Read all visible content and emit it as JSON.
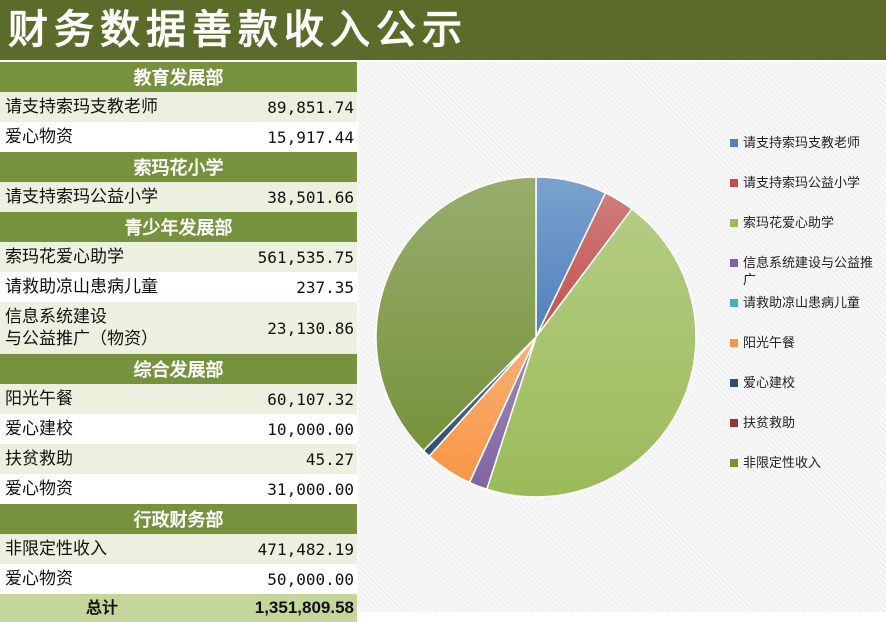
{
  "title": "财务数据善款收入公示",
  "table": {
    "sections": [
      {
        "name": "教育发展部",
        "rows": [
          {
            "label": "请支持索玛支教老师",
            "amount": "89,851.74"
          },
          {
            "label": "爱心物资",
            "amount": "15,917.44"
          }
        ]
      },
      {
        "name": "索玛花小学",
        "rows": [
          {
            "label": "请支持索玛公益小学",
            "amount": "38,501.66"
          }
        ]
      },
      {
        "name": "青少年发展部",
        "rows": [
          {
            "label": "索玛花爱心助学",
            "amount": "561,535.75"
          },
          {
            "label": "请救助凉山患病儿童",
            "amount": "237.35"
          },
          {
            "label": "信息系统建设\n与公益推广（物资）",
            "amount": "23,130.86"
          }
        ]
      },
      {
        "name": "综合发展部",
        "rows": [
          {
            "label": "阳光午餐",
            "amount": "60,107.32"
          },
          {
            "label": "爱心建校",
            "amount": "10,000.00"
          },
          {
            "label": "扶贫救助",
            "amount": "45.27"
          },
          {
            "label": "爱心物资",
            "amount": "31,000.00"
          }
        ]
      },
      {
        "name": "行政财务部",
        "rows": [
          {
            "label": "非限定性收入",
            "amount": "471,482.19"
          },
          {
            "label": "爱心物资",
            "amount": "50,000.00"
          }
        ]
      }
    ],
    "total_label": "总计",
    "total_amount": "1,351,809.58"
  },
  "chart_data": {
    "type": "pie",
    "categories": [
      "请支持索玛支教老师",
      "请支持索玛公益小学",
      "索玛花爱心助学",
      "信息系统建设与公益推广",
      "请救助凉山患病儿童",
      "阳光午餐",
      "爱心建校",
      "扶贫救助",
      "非限定性收入"
    ],
    "values": [
      89851.74,
      38501.66,
      561535.75,
      23130.86,
      237.35,
      60107.32,
      10000.0,
      45.27,
      471482.19
    ],
    "colors": [
      "#4f81bd",
      "#c0504d",
      "#9bbb59",
      "#8064a2",
      "#4bacc6",
      "#f79646",
      "#2c4d75",
      "#953735",
      "#76923c"
    ],
    "legend_position": "right",
    "start_angle": "12 o'clock, clockwise"
  }
}
